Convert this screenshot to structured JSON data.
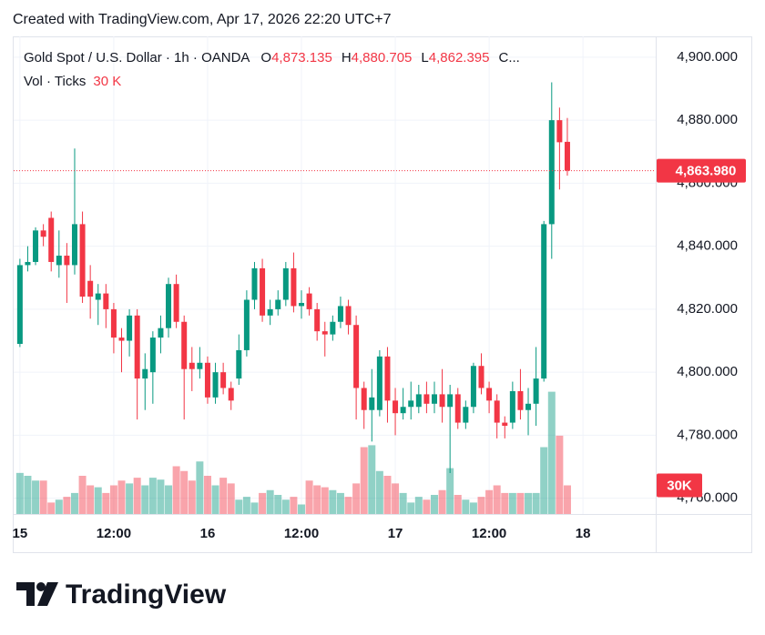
{
  "header": {
    "created": "Created with TradingView.com, Apr 17, 2026 22:20 UTC+7"
  },
  "footer": {
    "brand": "TradingView"
  },
  "chart_data": {
    "type": "candlestick",
    "title": "Gold Spot / U.S. Dollar · 1h · OANDA",
    "ohlc_legend": [
      {
        "key": "O",
        "text": "4,873.135"
      },
      {
        "key": "H",
        "text": "4,880.705"
      },
      {
        "key": "L",
        "text": "4,862.395"
      },
      {
        "key": "C",
        "text": "..."
      }
    ],
    "volume_title": "Vol · Ticks",
    "volume_header": "30 K",
    "volume_tag": "30K",
    "last_price": {
      "value": 4863.98,
      "label": "4,863.980"
    },
    "up_color": "#089981",
    "down_color": "#f23645",
    "grid": true,
    "x": [
      0,
      1,
      2,
      3,
      4,
      5,
      6,
      7,
      8,
      9,
      10,
      11,
      12,
      13,
      14,
      15,
      16,
      17,
      18,
      19,
      20,
      21,
      22,
      23,
      24,
      25,
      26,
      27,
      28,
      29,
      30,
      31,
      32,
      33,
      34,
      35,
      36,
      37,
      38,
      39,
      40,
      41,
      42,
      43,
      44,
      45,
      46,
      47,
      48,
      49,
      50,
      51,
      52,
      53,
      54,
      55,
      56,
      57,
      58,
      59,
      60,
      61,
      62,
      63,
      64,
      65,
      66,
      67,
      68,
      69,
      70
    ],
    "open": [
      4809,
      4834,
      4835,
      4845,
      4849,
      4834,
      4837,
      4834,
      4847,
      4829,
      4823,
      4825,
      4820,
      4811,
      4810,
      4818,
      4798,
      4800,
      4811,
      4814,
      4828,
      4816,
      4803,
      4801,
      4803,
      4792,
      4800,
      4795,
      4798,
      4807,
      4823,
      4833,
      4818,
      4820,
      4823,
      4833,
      4821,
      4825,
      4820,
      4813,
      4812,
      4816,
      4821,
      4815,
      4795,
      4788,
      4788,
      4805,
      4791,
      4787,
      4789,
      4789,
      4793,
      4790,
      4793,
      4789,
      4793,
      4784,
      4789,
      4802,
      4795,
      4791,
      4784,
      4784,
      4794,
      4788,
      4790,
      4798,
      4847,
      4880,
      4873.135
    ],
    "high": [
      4836,
      4840,
      4846,
      4847,
      4851,
      4845,
      4841,
      4871,
      4851,
      4834,
      4828,
      4828,
      4822,
      4814,
      4820,
      4820,
      4806,
      4813,
      4818,
      4830,
      4831,
      4818,
      4808,
      4808,
      4805,
      4803,
      4803,
      4797,
      4812,
      4826,
      4835,
      4836,
      4823,
      4826,
      4835,
      4838,
      4826,
      4827,
      4822,
      4816,
      4818,
      4824,
      4823,
      4818,
      4797,
      4801,
      4807,
      4808,
      4795,
      4795,
      4797,
      4796,
      4797,
      4797,
      4801,
      4796,
      4795,
      4791,
      4803,
      4806,
      4797,
      4793,
      4786,
      4797,
      4801,
      4795,
      4808,
      4848,
      4892,
      4884,
      4880.705
    ],
    "low": [
      4808,
      4832,
      4834,
      4840,
      4832,
      4830,
      4822,
      4831,
      4822,
      4817,
      4815,
      4814,
      4806,
      4800,
      4805,
      4785,
      4788,
      4790,
      4806,
      4811,
      4814,
      4785,
      4794,
      4798,
      4790,
      4790,
      4793,
      4788,
      4796,
      4805,
      4820,
      4816,
      4815,
      4818,
      4821,
      4819,
      4817,
      4818,
      4810,
      4805,
      4810,
      4814,
      4812,
      4785,
      4782,
      4778,
      4786,
      4784,
      4780,
      4785,
      4785,
      4787,
      4787,
      4787,
      4784,
      4768,
      4782,
      4782,
      4787,
      4793,
      4787,
      4779,
      4779,
      4782,
      4785,
      4780,
      4783,
      4797,
      4836,
      4858,
      4862.395
    ],
    "close": [
      4834,
      4835,
      4845,
      4843,
      4835,
      4837,
      4834,
      4847,
      4824,
      4824,
      4825,
      4820,
      4811,
      4810,
      4818,
      4798,
      4801,
      4811,
      4814,
      4828,
      4816,
      4801,
      4801,
      4803,
      4792,
      4800,
      4795,
      4791,
      4807,
      4823,
      4833,
      4818,
      4820,
      4823,
      4833,
      4821,
      4822,
      4820,
      4813,
      4812,
      4816,
      4821,
      4815,
      4795,
      4788,
      4792,
      4805,
      4791,
      4787,
      4789,
      4791,
      4793,
      4790,
      4793,
      4789,
      4793,
      4784,
      4789,
      4802,
      4795,
      4791,
      4784,
      4783,
      4794,
      4788,
      4790,
      4798,
      4847,
      4880,
      4873,
      4863.98
    ],
    "volume": {
      "name": "Vol · Ticks",
      "axis": "y2",
      "values": [
        43,
        40,
        35,
        35,
        12,
        15,
        18,
        22,
        40,
        30,
        28,
        22,
        30,
        35,
        32,
        38,
        30,
        38,
        36,
        30,
        50,
        45,
        35,
        55,
        40,
        30,
        38,
        32,
        15,
        18,
        12,
        22,
        25,
        20,
        15,
        18,
        10,
        35,
        30,
        28,
        25,
        22,
        18,
        32,
        70,
        72,
        45,
        40,
        32,
        22,
        12,
        18,
        15,
        20,
        25,
        48,
        20,
        15,
        12,
        18,
        25,
        30,
        22,
        22,
        22,
        22,
        22,
        70,
        128,
        82,
        30
      ]
    },
    "xlim": [
      -0.8,
      81.3
    ],
    "xticks": [
      {
        "value": 0,
        "label": "15"
      },
      {
        "value": 12,
        "label": "12:00"
      },
      {
        "value": 24,
        "label": "16"
      },
      {
        "value": 36,
        "label": "12:00"
      },
      {
        "value": 48,
        "label": "17"
      },
      {
        "value": 60,
        "label": "12:00"
      },
      {
        "value": 72,
        "label": "18"
      }
    ],
    "ylim": [
      4755,
      4906.6
    ],
    "yticks": [
      {
        "value": 4760,
        "label": "4,760.000"
      },
      {
        "value": 4780,
        "label": "4,780.000"
      },
      {
        "value": 4800,
        "label": "4,800.000"
      },
      {
        "value": 4820,
        "label": "4,820.000"
      },
      {
        "value": 4840,
        "label": "4,840.000"
      },
      {
        "value": 4860,
        "label": "4,860.000"
      },
      {
        "value": 4880,
        "label": "4,880.000"
      },
      {
        "value": 4900,
        "label": "4,900.000"
      }
    ],
    "y2lim": [
      0,
      500
    ]
  }
}
